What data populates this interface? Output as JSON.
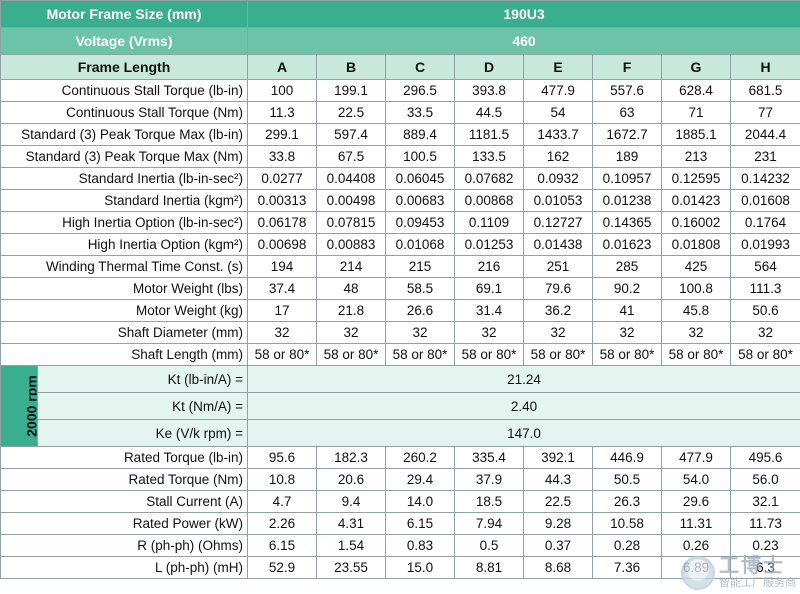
{
  "header": {
    "frame_size_label": "Motor Frame Size (mm)",
    "frame_size_value": "190U3",
    "voltage_label": "Voltage (Vrms)",
    "voltage_value": "460",
    "frame_length_label": "Frame Length",
    "columns": [
      "A",
      "B",
      "C",
      "D",
      "E",
      "F",
      "G",
      "H"
    ]
  },
  "rows_top": [
    {
      "label": "Continuous Stall Torque (lb-in)",
      "values": [
        "100",
        "199.1",
        "296.5",
        "393.8",
        "477.9",
        "557.6",
        "628.4",
        "681.5"
      ]
    },
    {
      "label": "Continuous Stall Torque (Nm)",
      "values": [
        "11.3",
        "22.5",
        "33.5",
        "44.5",
        "54",
        "63",
        "71",
        "77"
      ]
    },
    {
      "label": "Standard (3) Peak Torque Max (lb-in)",
      "values": [
        "299.1",
        "597.4",
        "889.4",
        "1181.5",
        "1433.7",
        "1672.7",
        "1885.1",
        "2044.4"
      ]
    },
    {
      "label": "Standard (3) Peak Torque Max (Nm)",
      "values": [
        "33.8",
        "67.5",
        "100.5",
        "133.5",
        "162",
        "189",
        "213",
        "231"
      ]
    },
    {
      "label": "Standard Inertia (lb-in-sec²)",
      "values": [
        "0.0277",
        "0.04408",
        "0.06045",
        "0.07682",
        "0.0932",
        "0.10957",
        "0.12595",
        "0.14232"
      ]
    },
    {
      "label": "Standard Inertia (kgm²)",
      "values": [
        "0.00313",
        "0.00498",
        "0.00683",
        "0.00868",
        "0.01053",
        "0.01238",
        "0.01423",
        "0.01608"
      ]
    },
    {
      "label": "High Inertia Option (lb-in-sec²)",
      "values": [
        "0.06178",
        "0.07815",
        "0.09453",
        "0.1109",
        "0.12727",
        "0.14365",
        "0.16002",
        "0.1764"
      ]
    },
    {
      "label": "High Inertia Option (kgm²)",
      "values": [
        "0.00698",
        "0.00883",
        "0.01068",
        "0.01253",
        "0.01438",
        "0.01623",
        "0.01808",
        "0.01993"
      ]
    },
    {
      "label": "Winding Thermal Time Const. (s)",
      "values": [
        "194",
        "214",
        "215",
        "216",
        "251",
        "285",
        "425",
        "564"
      ]
    },
    {
      "label": "Motor Weight (lbs)",
      "values": [
        "37.4",
        "48",
        "58.5",
        "69.1",
        "79.6",
        "90.2",
        "100.8",
        "111.3"
      ]
    },
    {
      "label": "Motor Weight (kg)",
      "values": [
        "17",
        "21.8",
        "26.6",
        "31.4",
        "36.2",
        "41",
        "45.8",
        "50.6"
      ]
    },
    {
      "label": "Shaft Diameter (mm)",
      "values": [
        "32",
        "32",
        "32",
        "32",
        "32",
        "32",
        "32",
        "32"
      ]
    },
    {
      "label": "Shaft Length (mm)",
      "values": [
        "58 or 80*",
        "58 or 80*",
        "58 or 80*",
        "58 or 80*",
        "58 or 80*",
        "58 or 80*",
        "58 or 80*",
        "58 or 80*"
      ]
    }
  ],
  "rpm_section": {
    "side_label": "2000 rpm",
    "rows": [
      {
        "label": "Kt (lb-in/A) =",
        "value": "21.24"
      },
      {
        "label": "Kt (Nm/A) =",
        "value": "2.40"
      },
      {
        "label": "Ke (V/k rpm) =",
        "value": "147.0"
      }
    ]
  },
  "rows_bottom": [
    {
      "label": "Rated Torque (lb-in)",
      "values": [
        "95.6",
        "182.3",
        "260.2",
        "335.4",
        "392.1",
        "446.9",
        "477.9",
        "495.6"
      ]
    },
    {
      "label": "Rated Torque (Nm)",
      "values": [
        "10.8",
        "20.6",
        "29.4",
        "37.9",
        "44.3",
        "50.5",
        "54.0",
        "56.0"
      ]
    },
    {
      "label": "Stall Current (A)",
      "values": [
        "4.7",
        "9.4",
        "14.0",
        "18.5",
        "22.5",
        "26.3",
        "29.6",
        "32.1"
      ]
    },
    {
      "label": "Rated Power (kW)",
      "values": [
        "2.26",
        "4.31",
        "6.15",
        "7.94",
        "9.28",
        "10.58",
        "11.31",
        "11.73"
      ]
    },
    {
      "label": "R (ph-ph) (Ohms)",
      "values": [
        "6.15",
        "1.54",
        "0.83",
        "0.5",
        "0.37",
        "0.28",
        "0.26",
        "0.23"
      ]
    },
    {
      "label": "L (ph-ph) (mH)",
      "values": [
        "52.9",
        "23.55",
        "15.0",
        "8.81",
        "8.68",
        "7.36",
        "6.89",
        "6.3"
      ]
    }
  ],
  "watermark": {
    "big": "工博士",
    "small": "智能工厂服务商"
  }
}
